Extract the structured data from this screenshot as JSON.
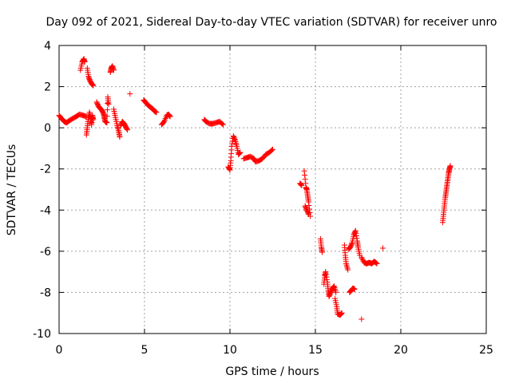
{
  "chart_data": {
    "type": "scatter",
    "title": "Day 092 of 2021, Sidereal Day-to-day VTEC variation (SDTVAR) for receiver unro",
    "xlabel": "GPS time / hours",
    "ylabel": "SDTVAR / TECUs",
    "xlim": [
      0,
      25
    ],
    "ylim": [
      -10,
      4
    ],
    "x_ticks": [
      0,
      5,
      10,
      15,
      20,
      25
    ],
    "y_ticks": [
      -10,
      -8,
      -6,
      -4,
      -2,
      0,
      2,
      4
    ],
    "x_tick_labels": [
      "0",
      "5",
      "10",
      "15",
      "20",
      "25"
    ],
    "y_tick_labels": [
      "-10",
      "-8",
      "-6",
      "-4",
      "-2",
      "0",
      "2",
      "4"
    ],
    "grid": true,
    "marker": "+",
    "color": "#ff0000",
    "series": [
      {
        "name": "SDTVAR",
        "segments": [
          [
            [
              0.0,
              0.6
            ],
            [
              0.15,
              0.45
            ],
            [
              0.3,
              0.3
            ],
            [
              0.45,
              0.25
            ],
            [
              0.6,
              0.35
            ],
            [
              0.8,
              0.45
            ],
            [
              1.0,
              0.55
            ],
            [
              1.2,
              0.65
            ],
            [
              1.4,
              0.6
            ],
            [
              1.6,
              0.55
            ]
          ],
          [
            [
              1.25,
              2.8
            ],
            [
              1.35,
              3.2
            ],
            [
              1.45,
              3.35
            ],
            [
              1.5,
              3.2
            ]
          ],
          [
            [
              1.65,
              2.9
            ],
            [
              1.72,
              2.5
            ],
            [
              1.8,
              2.3
            ],
            [
              1.9,
              2.15
            ],
            [
              2.0,
              2.05
            ]
          ],
          [
            [
              1.6,
              -0.35
            ],
            [
              1.65,
              0.0
            ],
            [
              1.7,
              0.4
            ],
            [
              1.78,
              0.75
            ],
            [
              1.85,
              0.45
            ],
            [
              1.9,
              0.15
            ],
            [
              1.95,
              0.6
            ],
            [
              2.0,
              0.4
            ]
          ],
          [
            [
              2.2,
              1.25
            ],
            [
              2.3,
              1.05
            ],
            [
              2.4,
              0.95
            ],
            [
              2.5,
              0.85
            ],
            [
              2.6,
              0.7
            ],
            [
              2.65,
              0.5
            ],
            [
              2.7,
              0.3
            ],
            [
              2.8,
              0.25
            ],
            [
              2.85,
              1.5
            ],
            [
              2.9,
              1.15
            ]
          ],
          [
            [
              3.0,
              2.7
            ],
            [
              3.05,
              2.9
            ],
            [
              3.12,
              3.0
            ],
            [
              3.2,
              2.8
            ]
          ],
          [
            [
              3.2,
              0.9
            ],
            [
              3.3,
              0.5
            ],
            [
              3.4,
              0.1
            ],
            [
              3.5,
              -0.2
            ],
            [
              3.55,
              -0.45
            ]
          ],
          [
            [
              3.6,
              0.1
            ],
            [
              3.7,
              0.3
            ],
            [
              3.8,
              0.2
            ],
            [
              3.9,
              0.05
            ],
            [
              4.0,
              -0.1
            ]
          ],
          [
            [
              4.15,
              1.65
            ]
          ],
          [
            [
              4.95,
              1.35
            ],
            [
              5.05,
              1.25
            ],
            [
              5.2,
              1.1
            ],
            [
              5.35,
              1.0
            ],
            [
              5.5,
              0.9
            ],
            [
              5.6,
              0.8
            ],
            [
              5.7,
              0.75
            ]
          ],
          [
            [
              6.0,
              0.15
            ],
            [
              6.15,
              0.3
            ],
            [
              6.3,
              0.6
            ],
            [
              6.4,
              0.65
            ],
            [
              6.5,
              0.55
            ]
          ],
          [
            [
              8.5,
              0.4
            ],
            [
              8.6,
              0.3
            ],
            [
              8.8,
              0.2
            ],
            [
              9.0,
              0.2
            ],
            [
              9.2,
              0.25
            ],
            [
              9.4,
              0.3
            ],
            [
              9.6,
              0.15
            ]
          ],
          [
            [
              9.9,
              -1.9
            ],
            [
              10.0,
              -2.05
            ],
            [
              10.05,
              -1.6
            ],
            [
              10.1,
              -0.9
            ],
            [
              10.2,
              -0.4
            ],
            [
              10.3,
              -0.6
            ],
            [
              10.4,
              -0.9
            ],
            [
              10.5,
              -1.3
            ],
            [
              10.6,
              -1.2
            ]
          ],
          [
            [
              10.8,
              -1.5
            ],
            [
              11.0,
              -1.45
            ],
            [
              11.2,
              -1.4
            ],
            [
              11.4,
              -1.5
            ],
            [
              11.5,
              -1.65
            ],
            [
              11.7,
              -1.6
            ],
            [
              11.9,
              -1.5
            ],
            [
              12.1,
              -1.3
            ],
            [
              12.3,
              -1.2
            ],
            [
              12.5,
              -1.05
            ]
          ],
          [
            [
              14.1,
              -2.7
            ],
            [
              14.2,
              -2.8
            ]
          ],
          [
            [
              14.35,
              -2.1
            ],
            [
              14.45,
              -2.9
            ],
            [
              14.5,
              -3.0
            ],
            [
              14.55,
              -3.3
            ],
            [
              14.6,
              -3.6
            ],
            [
              14.7,
              -4.3
            ]
          ],
          [
            [
              14.4,
              -3.8
            ],
            [
              14.5,
              -4.0
            ],
            [
              14.6,
              -4.2
            ]
          ],
          [
            [
              15.3,
              -5.4
            ],
            [
              15.35,
              -5.8
            ],
            [
              15.4,
              -6.05
            ]
          ],
          [
            [
              15.5,
              -7.6
            ],
            [
              15.55,
              -7.2
            ],
            [
              15.6,
              -7.0
            ],
            [
              15.7,
              -7.5
            ],
            [
              15.75,
              -7.9
            ],
            [
              15.8,
              -8.2
            ],
            [
              15.9,
              -8.0
            ],
            [
              16.0,
              -7.8
            ],
            [
              16.1,
              -7.7
            ],
            [
              16.2,
              -8.0
            ]
          ],
          [
            [
              16.15,
              -8.3
            ],
            [
              16.25,
              -8.7
            ],
            [
              16.3,
              -9.05
            ],
            [
              16.45,
              -9.1
            ],
            [
              16.55,
              -9.0
            ]
          ],
          [
            [
              16.7,
              -5.7
            ],
            [
              16.75,
              -6.2
            ],
            [
              16.8,
              -6.6
            ],
            [
              16.9,
              -6.9
            ]
          ],
          [
            [
              16.95,
              -5.9
            ],
            [
              17.05,
              -5.8
            ],
            [
              17.15,
              -5.6
            ],
            [
              17.25,
              -5.2
            ],
            [
              17.35,
              -5.0
            ],
            [
              17.45,
              -5.5
            ],
            [
              17.5,
              -5.8
            ],
            [
              17.6,
              -6.2
            ]
          ],
          [
            [
              17.0,
              -8.0
            ],
            [
              17.1,
              -7.9
            ],
            [
              17.2,
              -7.8
            ],
            [
              17.3,
              -7.85
            ]
          ],
          [
            [
              17.7,
              -9.3
            ]
          ],
          [
            [
              17.7,
              -6.3
            ],
            [
              17.85,
              -6.55
            ],
            [
              18.0,
              -6.6
            ],
            [
              18.15,
              -6.55
            ],
            [
              18.3,
              -6.6
            ],
            [
              18.45,
              -6.5
            ],
            [
              18.6,
              -6.6
            ]
          ],
          [
            [
              18.95,
              -5.85
            ]
          ],
          [
            [
              22.45,
              -4.6
            ],
            [
              22.5,
              -4.2
            ],
            [
              22.55,
              -3.8
            ],
            [
              22.6,
              -3.4
            ],
            [
              22.65,
              -3.1
            ],
            [
              22.7,
              -2.8
            ],
            [
              22.75,
              -2.5
            ],
            [
              22.8,
              -2.2
            ],
            [
              22.85,
              -2.0
            ],
            [
              22.9,
              -1.85
            ]
          ]
        ]
      }
    ]
  }
}
